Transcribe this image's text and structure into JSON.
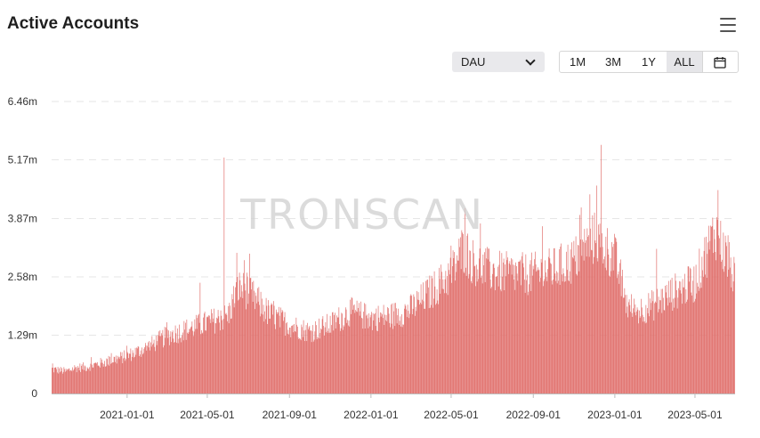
{
  "header": {
    "title": "Active Accounts"
  },
  "controls": {
    "metric_selected": "DAU",
    "ranges": [
      "1M",
      "3M",
      "1Y",
      "ALL"
    ],
    "active_range": "ALL"
  },
  "watermark": "TRONSCAN",
  "colors": {
    "bar": "#e06e6a",
    "grid": "#e6e6e6",
    "axis": "#bdbdbd"
  },
  "chart_data": {
    "type": "bar",
    "title": "Active Accounts",
    "series": [
      {
        "name": "DAU"
      }
    ],
    "x_start": "2020-09-10",
    "x_end": "2023-06-30",
    "ylim": [
      0,
      6.46
    ],
    "y_unit": "m",
    "y_ticks": [
      {
        "value": 0,
        "label": "0"
      },
      {
        "value": 1.29,
        "label": "1.29m"
      },
      {
        "value": 2.58,
        "label": "2.58m"
      },
      {
        "value": 3.87,
        "label": "3.87m"
      },
      {
        "value": 5.17,
        "label": "5.17m"
      },
      {
        "value": 6.46,
        "label": "6.46m"
      }
    ],
    "x_ticks": [
      "2021-01-01",
      "2021-05-01",
      "2021-09-01",
      "2022-01-01",
      "2022-05-01",
      "2022-09-01",
      "2023-01-01",
      "2023-05-01"
    ],
    "trend": [
      [
        "2020-09-10",
        0.55
      ],
      [
        "2020-10-01",
        0.5
      ],
      [
        "2020-10-15",
        0.58
      ],
      [
        "2020-11-01",
        0.6
      ],
      [
        "2020-12-01",
        0.72
      ],
      [
        "2021-01-01",
        0.85
      ],
      [
        "2021-02-01",
        1.05
      ],
      [
        "2021-03-01",
        1.3
      ],
      [
        "2021-04-01",
        1.45
      ],
      [
        "2021-05-01",
        1.6
      ],
      [
        "2021-06-01",
        1.75
      ],
      [
        "2021-06-15",
        2.4
      ],
      [
        "2021-07-01",
        2.3
      ],
      [
        "2021-08-01",
        1.8
      ],
      [
        "2021-09-01",
        1.55
      ],
      [
        "2021-10-01",
        1.4
      ],
      [
        "2021-11-01",
        1.55
      ],
      [
        "2021-12-01",
        1.85
      ],
      [
        "2022-01-01",
        1.7
      ],
      [
        "2022-02-01",
        1.75
      ],
      [
        "2022-03-01",
        1.9
      ],
      [
        "2022-04-01",
        2.3
      ],
      [
        "2022-05-01",
        2.7
      ],
      [
        "2022-05-20",
        3.3
      ],
      [
        "2022-06-01",
        3.0
      ],
      [
        "2022-07-01",
        2.75
      ],
      [
        "2022-08-01",
        2.7
      ],
      [
        "2022-09-01",
        2.7
      ],
      [
        "2022-10-01",
        2.8
      ],
      [
        "2022-11-01",
        3.0
      ],
      [
        "2022-12-01",
        3.5
      ],
      [
        "2023-01-01",
        3.1
      ],
      [
        "2023-01-20",
        2.0
      ],
      [
        "2023-02-01",
        1.85
      ],
      [
        "2023-03-01",
        2.0
      ],
      [
        "2023-04-01",
        2.3
      ],
      [
        "2023-05-01",
        2.5
      ],
      [
        "2023-06-01",
        3.7
      ],
      [
        "2023-06-30",
        2.6
      ]
    ],
    "spikes": [
      {
        "date": "2021-05-26",
        "value": 5.22
      },
      {
        "date": "2021-04-20",
        "value": 2.45
      },
      {
        "date": "2021-06-25",
        "value": 2.95
      },
      {
        "date": "2022-05-22",
        "value": 4.1
      },
      {
        "date": "2022-09-15",
        "value": 3.7
      },
      {
        "date": "2022-11-10",
        "value": 3.95
      },
      {
        "date": "2022-12-12",
        "value": 5.5
      },
      {
        "date": "2022-12-05",
        "value": 4.6
      },
      {
        "date": "2023-03-05",
        "value": 3.2
      },
      {
        "date": "2023-06-05",
        "value": 4.5
      },
      {
        "date": "2023-06-20",
        "value": 3.5
      }
    ]
  }
}
